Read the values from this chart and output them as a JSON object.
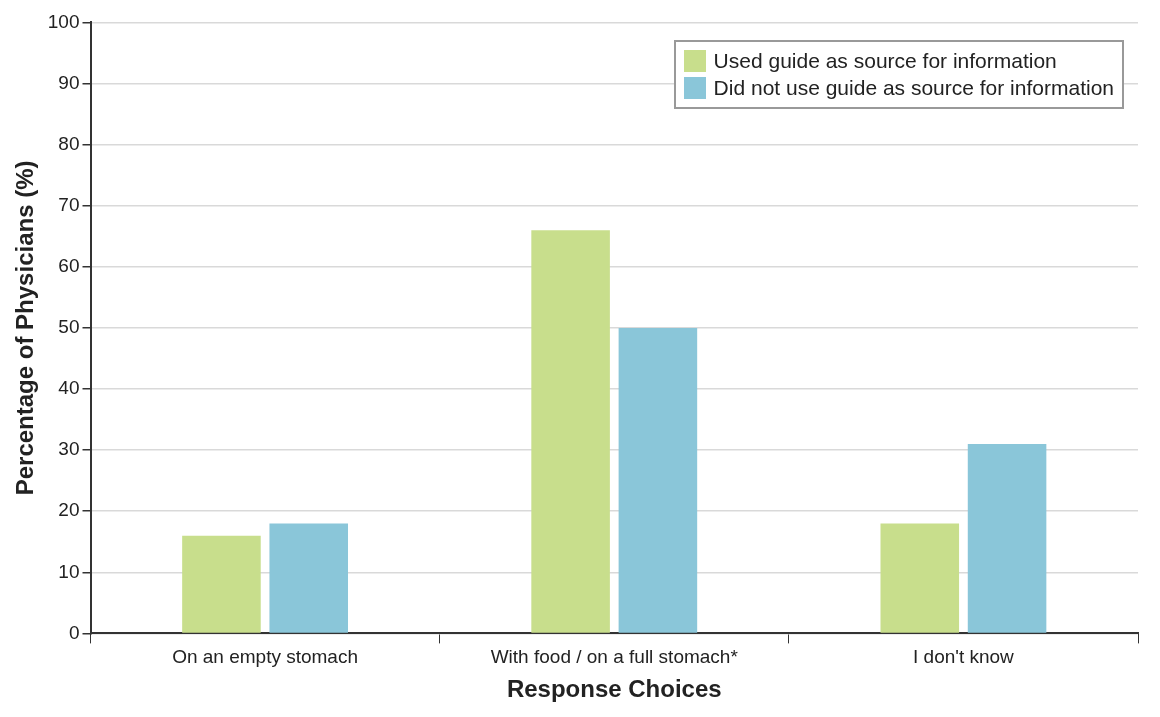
{
  "chart_data": {
    "type": "bar",
    "xlabel": "Response Choices",
    "ylabel": "Percentage of Physicians (%)",
    "categories": [
      "On an empty stomach",
      "With food / on a full stomach*",
      "I don't know"
    ],
    "series": [
      {
        "name": "Used guide as source for information",
        "color": "#c8de8c",
        "values": [
          16,
          66,
          18
        ]
      },
      {
        "name": "Did not use guide as source for information",
        "color": "#8ac6d9",
        "values": [
          18,
          50,
          31
        ]
      }
    ],
    "ylim": [
      0,
      100
    ],
    "yticks": [
      0,
      10,
      20,
      30,
      40,
      50,
      60,
      70,
      80,
      90,
      100
    ],
    "grid": "y",
    "legend": "top right"
  }
}
